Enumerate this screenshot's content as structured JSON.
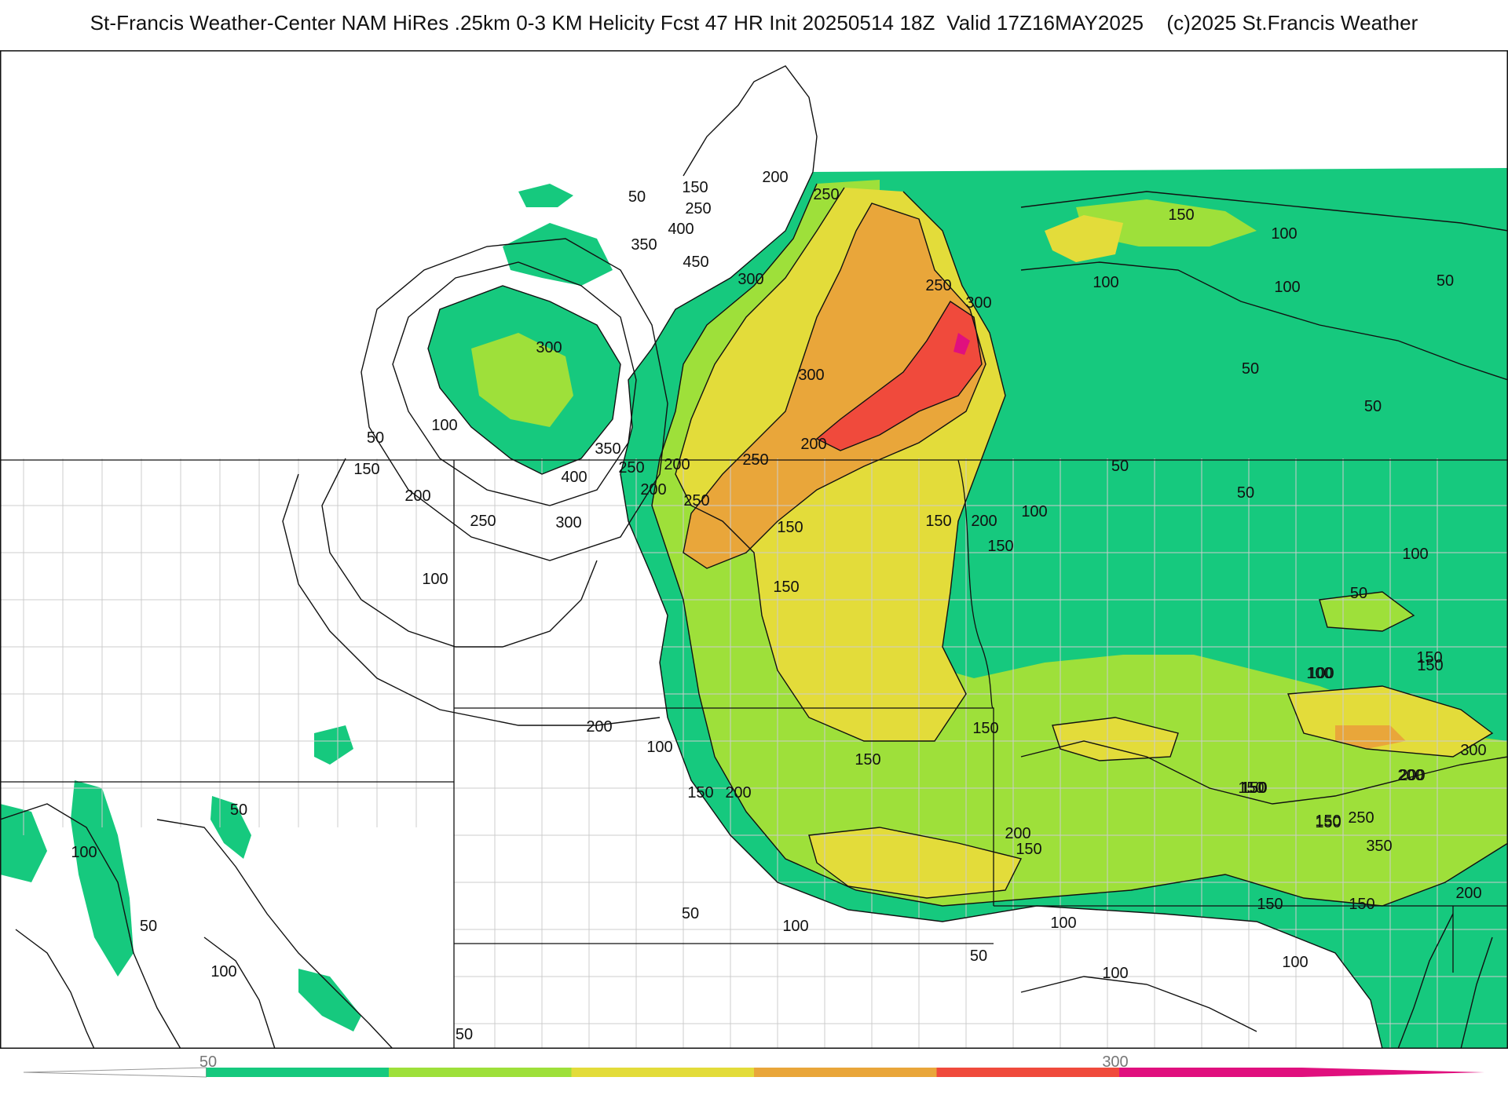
{
  "title": "St-Francis Weather-Center NAM HiRes .25km 0-3 KM Helicity Fcst 47 HR Init 20250514 18Z  Valid 17Z16MAY2025    (c)2025 St.Francis Weather",
  "colors": {
    "band_50": "#16c97e",
    "band_100": "#9ee03a",
    "band_150": "#e3dc3a",
    "band_200": "#e9a63a",
    "band_250": "#f04a3c",
    "band_300": "#e0107e",
    "frame": "#111111",
    "borders": "#c8c8c8"
  },
  "colorbar": {
    "labels": [
      {
        "text": "50",
        "value": 50
      },
      {
        "text": "300",
        "value": 300
      }
    ],
    "levels": [
      0,
      50,
      100,
      150,
      200,
      250,
      300,
      350,
      400
    ]
  },
  "contour_labels": [
    {
      "text": "50"
    },
    {
      "text": "150"
    },
    {
      "text": "250"
    },
    {
      "text": "400"
    },
    {
      "text": "350"
    },
    {
      "text": "450"
    },
    {
      "text": "200"
    },
    {
      "text": "250"
    },
    {
      "text": "300"
    },
    {
      "text": "300"
    },
    {
      "text": "100"
    },
    {
      "text": "50"
    },
    {
      "text": "150"
    },
    {
      "text": "200"
    },
    {
      "text": "250"
    },
    {
      "text": "350"
    },
    {
      "text": "400"
    },
    {
      "text": "300"
    },
    {
      "text": "100"
    },
    {
      "text": "250"
    },
    {
      "text": "200"
    },
    {
      "text": "200"
    },
    {
      "text": "250"
    },
    {
      "text": "250"
    },
    {
      "text": "300"
    },
    {
      "text": "300"
    },
    {
      "text": "250"
    },
    {
      "text": "200"
    },
    {
      "text": "150"
    },
    {
      "text": "200"
    },
    {
      "text": "150"
    },
    {
      "text": "150"
    },
    {
      "text": "50"
    },
    {
      "text": "150"
    },
    {
      "text": "200"
    },
    {
      "text": "100"
    },
    {
      "text": "100"
    },
    {
      "text": "150"
    },
    {
      "text": "50"
    },
    {
      "text": "50"
    },
    {
      "text": "100"
    },
    {
      "text": "50"
    },
    {
      "text": "100"
    },
    {
      "text": "50"
    },
    {
      "text": "150"
    },
    {
      "text": "100"
    },
    {
      "text": "200"
    },
    {
      "text": "150"
    },
    {
      "text": "150"
    },
    {
      "text": "100"
    },
    {
      "text": "150"
    },
    {
      "text": "150"
    },
    {
      "text": "200"
    },
    {
      "text": "100"
    },
    {
      "text": "150"
    },
    {
      "text": "50"
    },
    {
      "text": "200"
    },
    {
      "text": "150"
    },
    {
      "text": "150"
    },
    {
      "text": "100"
    },
    {
      "text": "150"
    },
    {
      "text": "200"
    },
    {
      "text": "300"
    },
    {
      "text": "150"
    },
    {
      "text": "150"
    },
    {
      "text": "250"
    },
    {
      "text": "350"
    },
    {
      "text": "150"
    },
    {
      "text": "150"
    },
    {
      "text": "200"
    },
    {
      "text": "50"
    },
    {
      "text": "100"
    },
    {
      "text": "100"
    },
    {
      "text": "50"
    },
    {
      "text": "100"
    },
    {
      "text": "100"
    },
    {
      "text": "50"
    },
    {
      "text": "100"
    },
    {
      "text": "50"
    },
    {
      "text": "50"
    },
    {
      "text": "100"
    }
  ]
}
